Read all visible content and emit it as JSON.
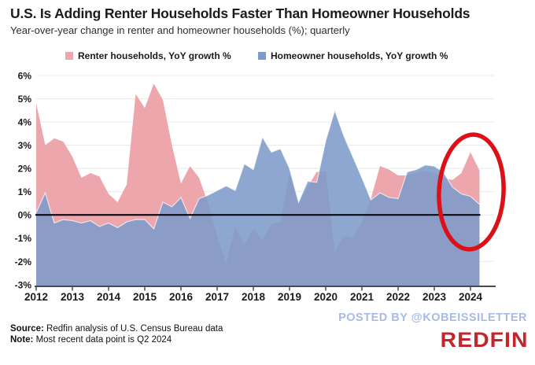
{
  "header": {
    "title": "U.S. Is Adding Renter Households Faster Than Homeowner Households",
    "subtitle": "Year-over-year change in renter and homeowner households (%); quarterly"
  },
  "legend": [
    {
      "label": "Renter households, YoY growth %",
      "color": "#eda6ab"
    },
    {
      "label": "Homeowner households, YoY growth %",
      "color": "#7d9bca"
    }
  ],
  "footer": {
    "source_label": "Source:",
    "source_text": " Redfin analysis of U.S. Census Bureau data",
    "note_label": "Note:",
    "note_text": " Most recent data point is Q2 2024",
    "watermark": "POSTED BY @KOBEISSILETTER",
    "logo": "REDFIN"
  },
  "chart_data": {
    "type": "area",
    "title": "U.S. Is Adding Renter Households Faster Than Homeowner Households",
    "subtitle": "Year-over-year change in renter and homeowner households (%); quarterly",
    "x_frequency": "quarterly",
    "x_start": "2012 Q1",
    "x_end": "2024 Q2",
    "x_tick_labels": [
      "2012",
      "2013",
      "2014",
      "2015",
      "2016",
      "2017",
      "2018",
      "2019",
      "2020",
      "2021",
      "2022",
      "2023",
      "2024"
    ],
    "y_tick_labels": [
      "6%",
      "5%",
      "4%",
      "3%",
      "2%",
      "1%",
      "0%",
      "-1%",
      "-2%",
      "-3%"
    ],
    "y_tick_values": [
      6,
      5,
      4,
      3,
      2,
      1,
      0,
      -1,
      -2,
      -3
    ],
    "ylim": [
      -3,
      6
    ],
    "grid": true,
    "zero_line_color": "#0b0b12",
    "series": [
      {
        "name": "Renter households, YoY growth %",
        "color": "#eda6ab",
        "values": [
          4.8,
          3.0,
          3.3,
          3.15,
          2.5,
          1.6,
          1.8,
          1.65,
          0.9,
          0.55,
          1.3,
          5.2,
          4.6,
          5.65,
          4.95,
          3.0,
          1.35,
          2.1,
          1.6,
          0.5,
          -0.9,
          -2.1,
          -0.5,
          -1.3,
          -0.6,
          -1.1,
          -0.4,
          -0.3,
          1.8,
          0.45,
          1.2,
          1.85,
          1.9,
          -1.6,
          -0.9,
          -1.0,
          -0.3,
          0.7,
          2.1,
          1.95,
          1.7,
          1.7,
          1.8,
          1.9,
          1.8,
          1.6,
          1.5,
          1.8,
          2.7,
          1.9
        ]
      },
      {
        "name": "Homeowner households, YoY growth %",
        "color": "#7d9bca",
        "values": [
          0.1,
          0.95,
          -0.35,
          -0.2,
          -0.25,
          -0.35,
          -0.25,
          -0.5,
          -0.35,
          -0.55,
          -0.3,
          -0.2,
          -0.2,
          -0.6,
          0.55,
          0.35,
          0.75,
          -0.15,
          0.7,
          0.85,
          1.05,
          1.25,
          1.05,
          2.2,
          1.95,
          3.35,
          2.7,
          2.85,
          2.0,
          0.55,
          1.45,
          1.4,
          3.2,
          4.5,
          3.4,
          2.5,
          1.6,
          0.65,
          0.95,
          0.75,
          0.7,
          1.85,
          1.95,
          2.15,
          2.1,
          1.85,
          1.2,
          0.9,
          0.8,
          0.45
        ]
      }
    ],
    "annotation": {
      "shape": "ellipse",
      "color": "#dc1118",
      "highlights": "most recent quarters (2024): renter growth above homeowner growth"
    }
  }
}
